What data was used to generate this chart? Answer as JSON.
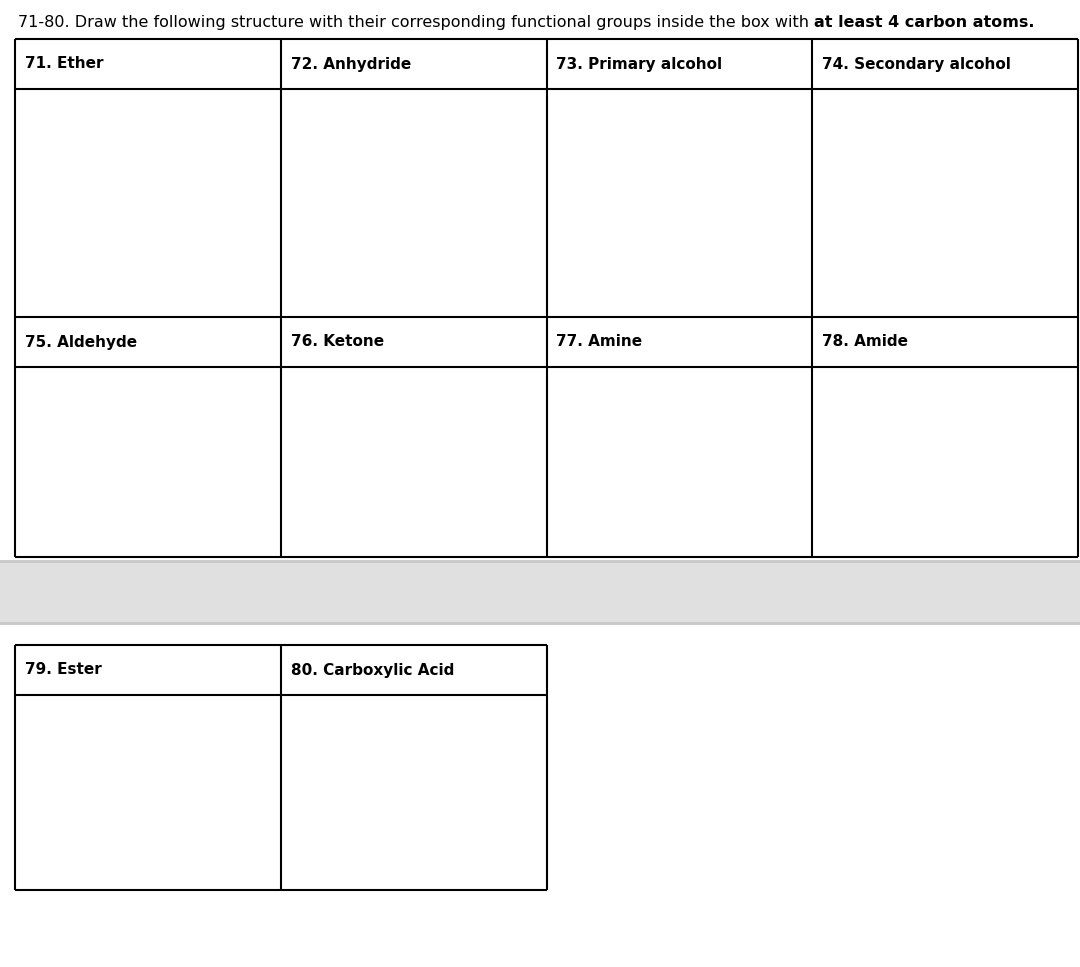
{
  "title_normal": "71-80. Draw the following structure with their corresponding functional groups inside the box with ",
  "title_bold": "at least 4 carbon atoms.",
  "title_fontsize": 11.5,
  "bg_color": "#ffffff",
  "line_color": "#000000",
  "label_fontsize": 11,
  "top_section": {
    "row1_labels": [
      "71. Ether",
      "72. Anhydride",
      "73. Primary alcohol",
      "74. Secondary alcohol"
    ],
    "row2_labels": [
      "75. Aldehyde",
      "76. Ketone",
      "77. Amine",
      "78. Amide"
    ]
  },
  "bottom_section": {
    "labels": [
      "79. Ester",
      "80. Carboxylic Acid"
    ]
  },
  "separator_color": "#c8c8c8",
  "sep_color2": "#e8e8e8"
}
